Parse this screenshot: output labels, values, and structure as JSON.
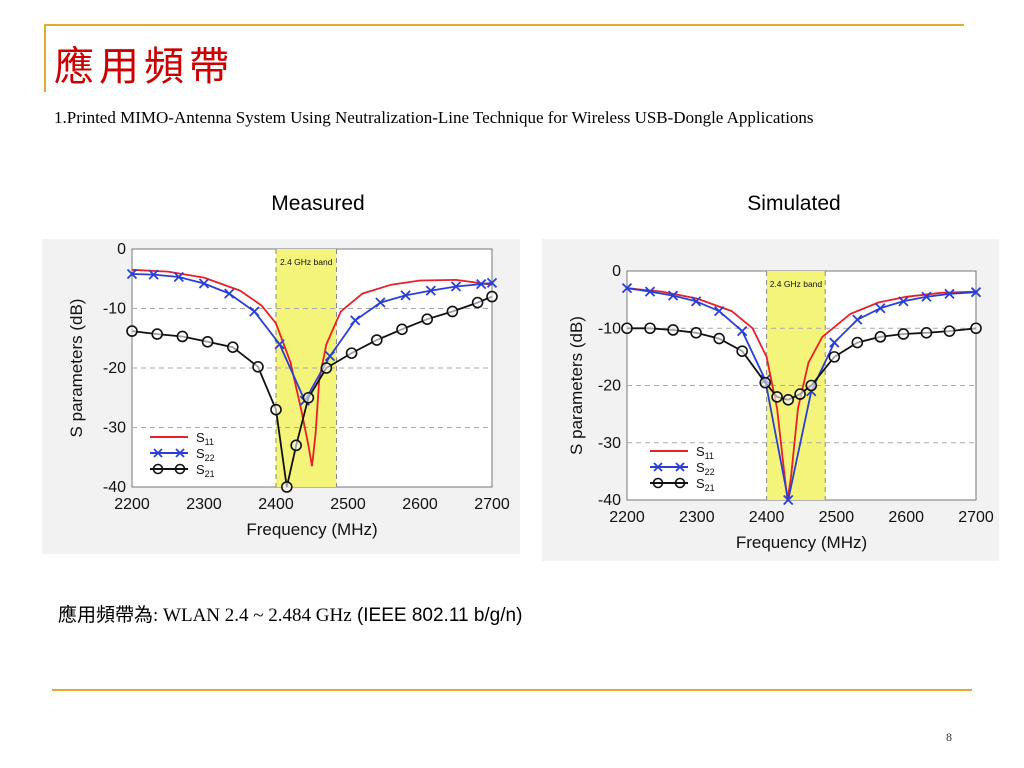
{
  "slide": {
    "title": "應用頻帶",
    "subtitle": "1.Printed MIMO-Antenna System Using Neutralization-Line Technique for Wireless USB-Dongle Applications",
    "bottom_text_prefix": "應用頻帶為: WLAN 2.4 ~ 2.484 GHz",
    "bottom_text_suffix": " (IEEE 802.11 b/g/n)",
    "page_number": "8"
  },
  "colors": {
    "rule": "#e6a82e",
    "title": "#cc0000",
    "s11": "#e8202a",
    "s22": "#2a3fd6",
    "s21": "#111111",
    "band": "#f4f47a"
  },
  "chart_data": [
    {
      "type": "line",
      "title": "Measured",
      "xlabel": "Frequency (MHz)",
      "ylabel": "S parameters (dB)",
      "xlim": [
        2200,
        2700
      ],
      "ylim": [
        -40,
        0
      ],
      "xticks": [
        "2200",
        "2300",
        "2400",
        "2500",
        "2600",
        "2700"
      ],
      "yticks": [
        "0",
        "-10",
        "-20",
        "-30",
        "-40"
      ],
      "band": {
        "label": "2.4 GHz band",
        "from": 2400,
        "to": 2484
      },
      "grid": "dashed horizontal",
      "legend": "bottom-left",
      "series": [
        {
          "name": "S11",
          "marker": "none",
          "x": [
            2200,
            2250,
            2300,
            2350,
            2380,
            2400,
            2420,
            2435,
            2445,
            2450,
            2455,
            2460,
            2470,
            2490,
            2520,
            2560,
            2600,
            2650,
            2700
          ],
          "y": [
            -3.5,
            -3.8,
            -4.8,
            -7,
            -9.5,
            -12.5,
            -19,
            -27,
            -33,
            -36.5,
            -31,
            -22,
            -16,
            -10.5,
            -7.5,
            -6,
            -5.3,
            -5.2,
            -6
          ]
        },
        {
          "name": "S22",
          "marker": "x",
          "x": [
            2200,
            2230,
            2265,
            2300,
            2335,
            2370,
            2405,
            2440,
            2475,
            2510,
            2545,
            2580,
            2615,
            2650,
            2685,
            2700
          ],
          "y": [
            -4.2,
            -4.3,
            -4.7,
            -5.8,
            -7.5,
            -10.5,
            -16,
            -25.5,
            -18,
            -12,
            -9,
            -7.8,
            -7,
            -6.3,
            -5.9,
            -5.7
          ]
        },
        {
          "name": "S21",
          "marker": "o",
          "x": [
            2200,
            2235,
            2270,
            2305,
            2340,
            2375,
            2400,
            2415,
            2428,
            2445,
            2470,
            2505,
            2540,
            2575,
            2610,
            2645,
            2680,
            2700
          ],
          "y": [
            -13.8,
            -14.3,
            -14.7,
            -15.6,
            -16.5,
            -19.8,
            -27,
            -40,
            -33,
            -25,
            -20,
            -17.5,
            -15.3,
            -13.5,
            -11.8,
            -10.5,
            -9,
            -8
          ]
        }
      ]
    },
    {
      "type": "line",
      "title": "Simulated",
      "xlabel": "Frequency (MHz)",
      "ylabel": "S parameters (dB)",
      "xlim": [
        2200,
        2700
      ],
      "ylim": [
        -40,
        0
      ],
      "xticks": [
        "2200",
        "2300",
        "2400",
        "2500",
        "2600",
        "2700"
      ],
      "yticks": [
        "0",
        "-10",
        "-20",
        "-30",
        "-40"
      ],
      "band": {
        "label": "2.4 GHz band",
        "from": 2400,
        "to": 2484
      },
      "grid": "dashed horizontal",
      "legend": "bottom-left",
      "series": [
        {
          "name": "S11",
          "marker": "none",
          "x": [
            2200,
            2250,
            2300,
            2350,
            2380,
            2400,
            2415,
            2425,
            2430,
            2435,
            2445,
            2460,
            2480,
            2520,
            2560,
            2600,
            2650,
            2700
          ],
          "y": [
            -3,
            -3.6,
            -4.8,
            -7,
            -10,
            -15,
            -24,
            -35,
            -40,
            -36,
            -24,
            -16,
            -11.5,
            -7.5,
            -5.5,
            -4.5,
            -3.8,
            -3.6
          ]
        },
        {
          "name": "S22",
          "marker": "x",
          "x": [
            2200,
            2233,
            2266,
            2299,
            2332,
            2365,
            2398,
            2431,
            2464,
            2497,
            2530,
            2563,
            2596,
            2629,
            2662,
            2700
          ],
          "y": [
            -3,
            -3.6,
            -4.3,
            -5.3,
            -7,
            -10.5,
            -19,
            -40,
            -21,
            -12.5,
            -8.5,
            -6.5,
            -5.3,
            -4.5,
            -4,
            -3.7
          ]
        },
        {
          "name": "S21",
          "marker": "o",
          "x": [
            2200,
            2233,
            2266,
            2299,
            2332,
            2365,
            2398,
            2415,
            2431,
            2448,
            2464,
            2497,
            2530,
            2563,
            2596,
            2629,
            2662,
            2700
          ],
          "y": [
            -10,
            -10,
            -10.3,
            -10.8,
            -11.8,
            -14,
            -19.5,
            -22,
            -22.5,
            -21.5,
            -20,
            -15,
            -12.5,
            -11.5,
            -11,
            -10.8,
            -10.5,
            -10
          ]
        }
      ]
    }
  ]
}
